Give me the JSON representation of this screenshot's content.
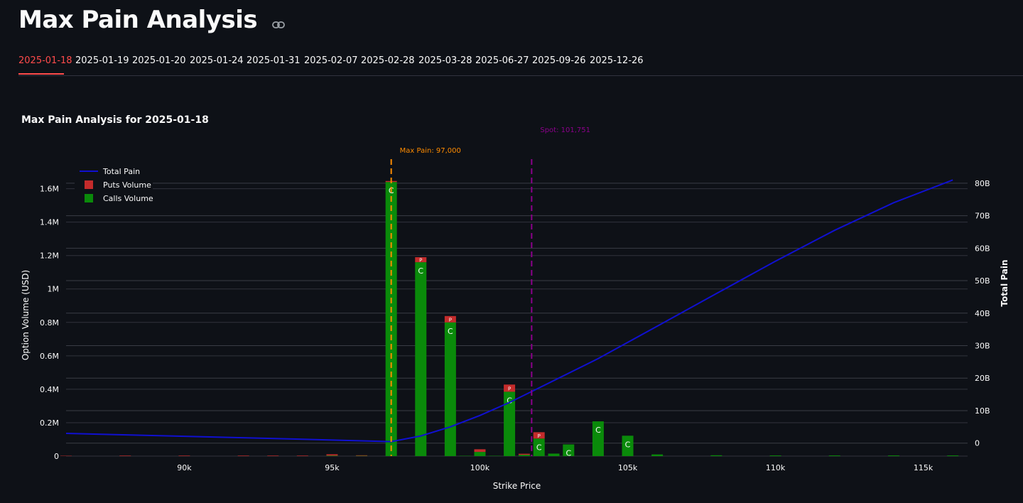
{
  "page": {
    "title": "Max Pain Analysis"
  },
  "tabs": [
    "2025-01-18",
    "2025-01-19",
    "2025-01-20",
    "2025-01-24",
    "2025-01-31",
    "2025-02-07",
    "2025-02-28",
    "2025-03-28",
    "2025-06-27",
    "2025-09-26",
    "2025-12-26"
  ],
  "active_tab": 0,
  "colors": {
    "accent": "#ff4b4b",
    "puts": "#c42b2b",
    "calls": "#0a8a0a",
    "pain_line": "#1010d0",
    "max_pain": "#ff8c00",
    "spot": "#8b008b"
  },
  "chart_data": {
    "type": "bar",
    "title": "Max Pain Analysis for 2025-01-18",
    "xlabel": "Strike Price",
    "ylabel": "Option Volume (USD)",
    "y2label": "Total Pain",
    "xlim": [
      86000,
      116500
    ],
    "ylim": [
      0,
      1730000
    ],
    "y2lim": [
      -4000000000,
      85000000000
    ],
    "x_ticks": [
      90000,
      95000,
      100000,
      105000,
      110000,
      115000
    ],
    "x_tick_labels": [
      "90k",
      "95k",
      "100k",
      "105k",
      "110k",
      "115k"
    ],
    "y_ticks": [
      0,
      200000,
      400000,
      600000,
      800000,
      1000000,
      1200000,
      1400000,
      1600000
    ],
    "y_tick_labels": [
      "0",
      "0.2M",
      "0.4M",
      "0.6M",
      "0.8M",
      "1M",
      "1.2M",
      "1.4M",
      "1.6M"
    ],
    "y2_ticks": [
      0,
      10000000000,
      20000000000,
      30000000000,
      40000000000,
      50000000000,
      60000000000,
      70000000000,
      80000000000
    ],
    "y2_tick_labels": [
      "0",
      "10B",
      "20B",
      "30B",
      "40B",
      "50B",
      "60B",
      "70B",
      "80B"
    ],
    "legend": {
      "position": "top-left",
      "items": [
        "Total Pain",
        "Puts Volume",
        "Calls Volume"
      ]
    },
    "strikes": [
      86000,
      88000,
      90000,
      92000,
      93000,
      94000,
      95000,
      96000,
      97000,
      98000,
      99000,
      99500,
      100000,
      100500,
      101000,
      101500,
      102000,
      102500,
      103000,
      104000,
      105000,
      106000,
      108000,
      110000,
      112000,
      114000,
      116000
    ],
    "series": [
      {
        "name": "Calls Volume",
        "bar_label": "C",
        "values": [
          0,
          0,
          0,
          0,
          0,
          0,
          3000,
          2000,
          1640000,
          1160000,
          800000,
          2000,
          25000,
          2000,
          385000,
          8000,
          105000,
          15000,
          70000,
          208000,
          122000,
          10000,
          5000,
          4000,
          4000,
          4000,
          4000
        ]
      },
      {
        "name": "Puts Volume",
        "bar_label": "P",
        "values": [
          2000,
          3000,
          3000,
          3000,
          3000,
          3000,
          8000,
          3000,
          6000,
          30000,
          38000,
          0,
          16000,
          0,
          43000,
          6000,
          38000,
          0,
          0,
          0,
          0,
          0,
          0,
          0,
          0,
          0,
          0
        ]
      },
      {
        "name": "Total Pain",
        "x": [
          86000,
          90000,
          94000,
          96000,
          97000,
          98000,
          99000,
          100000,
          101000,
          102000,
          104000,
          106000,
          108000,
          110000,
          112000,
          114000,
          116000
        ],
        "values": [
          3000000000,
          2100000000,
          1200000000,
          700000000,
          450000000,
          2200000000,
          5000000000,
          8500000000,
          12500000000,
          17000000000,
          26000000000,
          36000000000,
          46000000000,
          56000000000,
          65500000000,
          74000000000,
          81000000000
        ]
      }
    ],
    "annotations": [
      {
        "label": "Max Pain: 97,000",
        "x": 97000,
        "color": "#ff8c00"
      },
      {
        "label": "Spot: 101,751",
        "x": 101751,
        "color": "#8b008b"
      }
    ]
  }
}
